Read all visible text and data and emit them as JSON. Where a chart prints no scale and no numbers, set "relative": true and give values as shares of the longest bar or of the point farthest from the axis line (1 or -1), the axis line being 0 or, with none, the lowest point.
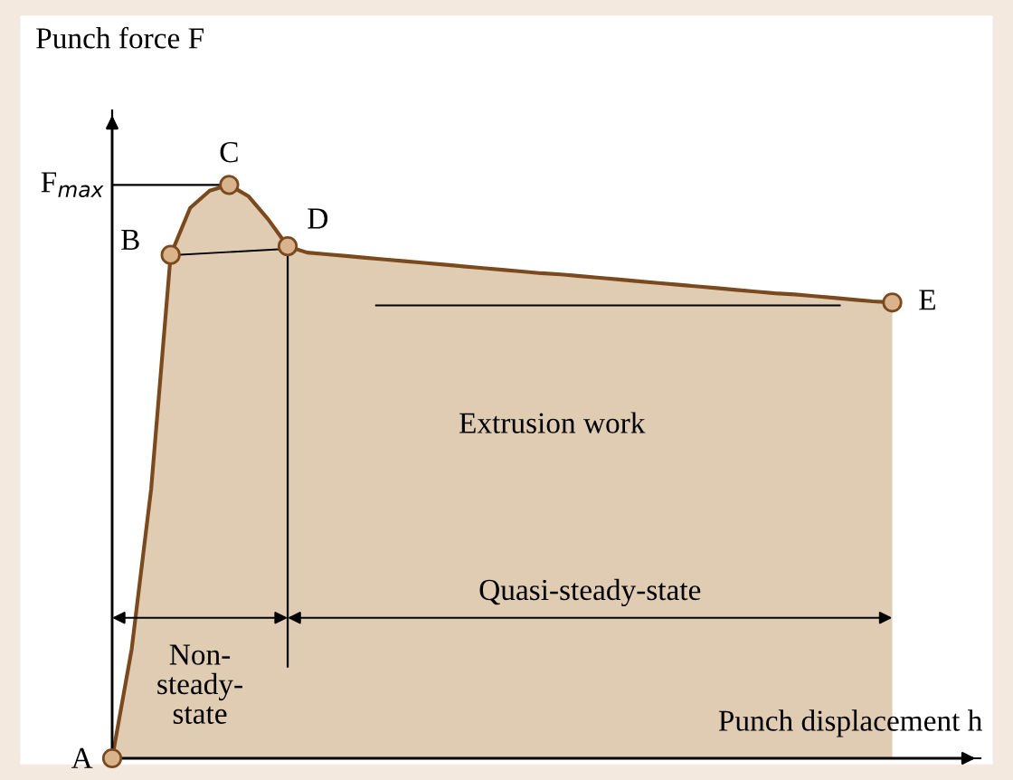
{
  "chart_data": {
    "type": "area",
    "relative": true,
    "xlabel": "Punch displacement h",
    "ylabel": "Punch force F",
    "categories": [
      null,
      null,
      null,
      null,
      null,
      null,
      null,
      null,
      null,
      null,
      null,
      null,
      null,
      null,
      null,
      null,
      null,
      null,
      null,
      null,
      null,
      null,
      null,
      null,
      null,
      null,
      null,
      null,
      null,
      null,
      null,
      null,
      null,
      null,
      null,
      null,
      null,
      null,
      null,
      null,
      null
    ],
    "series": [
      {
        "color": "#e0cbb3",
        "values": [
          0,
          0.19,
          0.47,
          0.878,
          0.96,
          0.99,
          1.0,
          0.98,
          0.94,
          0.893,
          0.882,
          0.879,
          0.876,
          0.873,
          0.87,
          0.867,
          0.864,
          0.861,
          0.858,
          0.855,
          0.852,
          0.849,
          0.846,
          0.844,
          0.841,
          0.838,
          0.835,
          0.832,
          0.829,
          0.826,
          0.823,
          0.82,
          0.817,
          0.814,
          0.811,
          0.809,
          0.806,
          0.803,
          0.8,
          0.797,
          0.795
        ]
      }
    ],
    "ref_lines": [
      {
        "axis": "y",
        "value": 0.79
      }
    ],
    "annotations": [
      "A",
      "B",
      "C",
      "D",
      "E",
      "F$_{max}$",
      "Extrusion work",
      "Non-\nsteady-\nstate",
      "Quasi-steady-state"
    ]
  }
}
